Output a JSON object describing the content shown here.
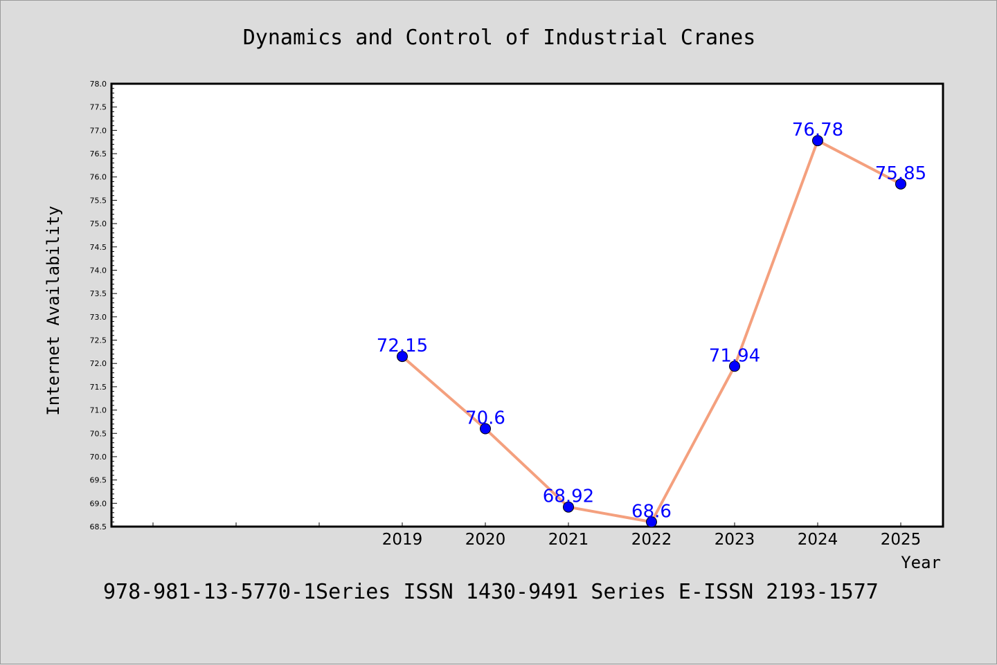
{
  "chart_data": {
    "type": "line",
    "title": "Dynamics and Control of Industrial Cranes",
    "xlabel": "Year",
    "ylabel": "Internet Availability",
    "ylim": [
      68.5,
      78.0
    ],
    "ytick_step": 0.5,
    "categories": [
      "2019",
      "2020",
      "2021",
      "2022",
      "2023",
      "2024",
      "2025"
    ],
    "series": [
      {
        "values": [
          72.15,
          70.6,
          68.92,
          68.6,
          71.94,
          76.78,
          75.85
        ],
        "labels": [
          "72.15",
          "70.6",
          "68.92",
          "68.6",
          "71.94",
          "76.78",
          "75.85"
        ]
      }
    ],
    "line_color": "#f4a07e",
    "marker_color": "#0000ff",
    "label_color": "#0000ff",
    "grid": false,
    "legend": "none"
  },
  "footer": {
    "text": "978-981-13-5770-1Series ISSN 1430-9491 Series E-ISSN 2193-1577"
  }
}
